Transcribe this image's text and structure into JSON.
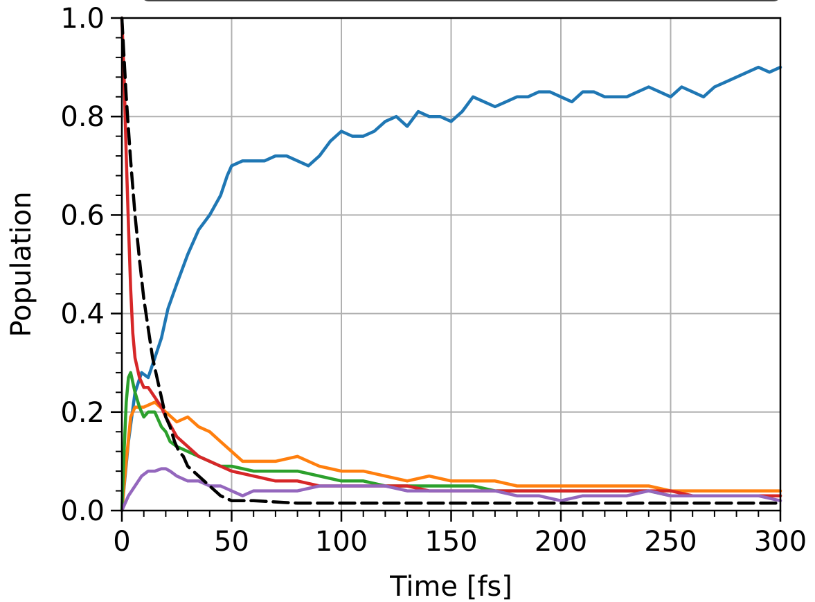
{
  "chart_data": {
    "type": "line",
    "title": "",
    "xlabel": "Time [fs]",
    "ylabel": "Population",
    "xlim": [
      0,
      300
    ],
    "ylim": [
      0,
      1.0
    ],
    "x_ticks": [
      "0",
      "50",
      "100",
      "150",
      "200",
      "250",
      "300"
    ],
    "y_ticks": [
      "0.0",
      "0.2",
      "0.4",
      "0.6",
      "0.8",
      "1.0"
    ],
    "grid": true,
    "legend": "top (cropped, entries not visible)",
    "series": [
      {
        "color": "#1f77b4",
        "style": "solid",
        "x": [
          0,
          3,
          6,
          9,
          12,
          15,
          18,
          21,
          25,
          30,
          35,
          40,
          45,
          48,
          50,
          55,
          60,
          65,
          70,
          75,
          80,
          85,
          90,
          95,
          100,
          105,
          110,
          115,
          120,
          125,
          130,
          135,
          140,
          145,
          150,
          155,
          160,
          165,
          170,
          175,
          180,
          185,
          190,
          195,
          200,
          205,
          210,
          215,
          220,
          225,
          230,
          235,
          240,
          245,
          250,
          255,
          260,
          265,
          270,
          275,
          280,
          285,
          290,
          295,
          300
        ],
        "y": [
          0.0,
          0.14,
          0.24,
          0.28,
          0.27,
          0.31,
          0.35,
          0.41,
          0.46,
          0.52,
          0.57,
          0.6,
          0.64,
          0.68,
          0.7,
          0.71,
          0.71,
          0.71,
          0.72,
          0.72,
          0.71,
          0.7,
          0.72,
          0.75,
          0.77,
          0.76,
          0.76,
          0.77,
          0.79,
          0.8,
          0.78,
          0.81,
          0.8,
          0.8,
          0.79,
          0.81,
          0.84,
          0.83,
          0.82,
          0.83,
          0.84,
          0.84,
          0.85,
          0.85,
          0.84,
          0.83,
          0.85,
          0.85,
          0.84,
          0.84,
          0.84,
          0.85,
          0.86,
          0.85,
          0.84,
          0.86,
          0.85,
          0.84,
          0.86,
          0.87,
          0.88,
          0.89,
          0.9,
          0.89,
          0.9
        ]
      },
      {
        "color": "#ff7f0e",
        "style": "solid",
        "x": [
          0,
          2,
          4,
          6,
          10,
          15,
          20,
          25,
          30,
          35,
          40,
          45,
          50,
          55,
          60,
          70,
          80,
          90,
          100,
          110,
          120,
          130,
          140,
          150,
          160,
          170,
          180,
          190,
          200,
          210,
          220,
          230,
          240,
          250,
          260,
          270,
          280,
          290,
          300
        ],
        "y": [
          0.0,
          0.1,
          0.19,
          0.21,
          0.21,
          0.22,
          0.2,
          0.18,
          0.19,
          0.17,
          0.16,
          0.14,
          0.12,
          0.1,
          0.1,
          0.1,
          0.11,
          0.09,
          0.08,
          0.08,
          0.07,
          0.06,
          0.07,
          0.06,
          0.06,
          0.06,
          0.05,
          0.05,
          0.05,
          0.05,
          0.05,
          0.05,
          0.05,
          0.04,
          0.04,
          0.04,
          0.04,
          0.04,
          0.04
        ]
      },
      {
        "color": "#2ca02c",
        "style": "solid",
        "x": [
          0,
          1,
          2,
          3,
          4,
          6,
          8,
          10,
          12,
          15,
          18,
          20,
          22,
          25,
          30,
          35,
          40,
          45,
          50,
          60,
          70,
          80,
          90,
          100,
          110,
          120,
          130,
          140,
          150,
          160,
          170,
          180,
          190,
          200,
          210,
          220,
          230,
          240,
          250,
          260,
          270,
          280,
          290,
          300
        ],
        "y": [
          0.0,
          0.12,
          0.22,
          0.27,
          0.28,
          0.24,
          0.21,
          0.19,
          0.2,
          0.2,
          0.17,
          0.16,
          0.14,
          0.13,
          0.12,
          0.11,
          0.1,
          0.09,
          0.09,
          0.08,
          0.08,
          0.08,
          0.07,
          0.06,
          0.06,
          0.05,
          0.05,
          0.05,
          0.05,
          0.05,
          0.04,
          0.04,
          0.04,
          0.04,
          0.04,
          0.04,
          0.04,
          0.04,
          0.03,
          0.03,
          0.03,
          0.03,
          0.03,
          0.03
        ]
      },
      {
        "color": "#d62728",
        "style": "solid",
        "x": [
          0,
          1,
          2,
          3,
          4,
          5,
          6,
          8,
          10,
          12,
          15,
          18,
          20,
          25,
          30,
          35,
          40,
          45,
          50,
          60,
          70,
          80,
          90,
          100,
          110,
          120,
          130,
          140,
          150,
          160,
          170,
          180,
          190,
          200,
          210,
          220,
          230,
          240,
          250,
          260,
          270,
          280,
          290,
          300
        ],
        "y": [
          1.0,
          0.88,
          0.72,
          0.58,
          0.45,
          0.36,
          0.31,
          0.27,
          0.25,
          0.25,
          0.23,
          0.21,
          0.19,
          0.15,
          0.13,
          0.11,
          0.1,
          0.09,
          0.08,
          0.07,
          0.06,
          0.06,
          0.05,
          0.05,
          0.05,
          0.05,
          0.05,
          0.04,
          0.04,
          0.04,
          0.04,
          0.04,
          0.04,
          0.04,
          0.04,
          0.04,
          0.04,
          0.04,
          0.04,
          0.03,
          0.03,
          0.03,
          0.03,
          0.03
        ]
      },
      {
        "color": "#9467bd",
        "style": "solid",
        "x": [
          0,
          3,
          6,
          9,
          12,
          15,
          18,
          20,
          22,
          25,
          30,
          35,
          40,
          45,
          50,
          55,
          60,
          70,
          80,
          90,
          100,
          110,
          120,
          130,
          140,
          150,
          160,
          170,
          180,
          190,
          200,
          210,
          220,
          230,
          240,
          250,
          260,
          270,
          280,
          290,
          300
        ],
        "y": [
          0.0,
          0.03,
          0.05,
          0.07,
          0.08,
          0.08,
          0.085,
          0.085,
          0.08,
          0.07,
          0.06,
          0.06,
          0.05,
          0.05,
          0.04,
          0.03,
          0.04,
          0.04,
          0.04,
          0.05,
          0.05,
          0.05,
          0.05,
          0.04,
          0.04,
          0.04,
          0.04,
          0.04,
          0.03,
          0.03,
          0.02,
          0.03,
          0.03,
          0.03,
          0.04,
          0.03,
          0.03,
          0.03,
          0.03,
          0.03,
          0.02
        ]
      },
      {
        "color": "#000000",
        "style": "dashed",
        "x": [
          0,
          2,
          4,
          6,
          8,
          10,
          12,
          14,
          16,
          18,
          20,
          22,
          24,
          26,
          28,
          30,
          35,
          40,
          45,
          50,
          60,
          80,
          100,
          150,
          200,
          250,
          300
        ],
        "y": [
          1.0,
          0.84,
          0.71,
          0.6,
          0.51,
          0.43,
          0.37,
          0.31,
          0.27,
          0.23,
          0.19,
          0.17,
          0.14,
          0.12,
          0.11,
          0.09,
          0.07,
          0.05,
          0.03,
          0.02,
          0.02,
          0.015,
          0.015,
          0.015,
          0.015,
          0.015,
          0.015
        ]
      }
    ]
  }
}
